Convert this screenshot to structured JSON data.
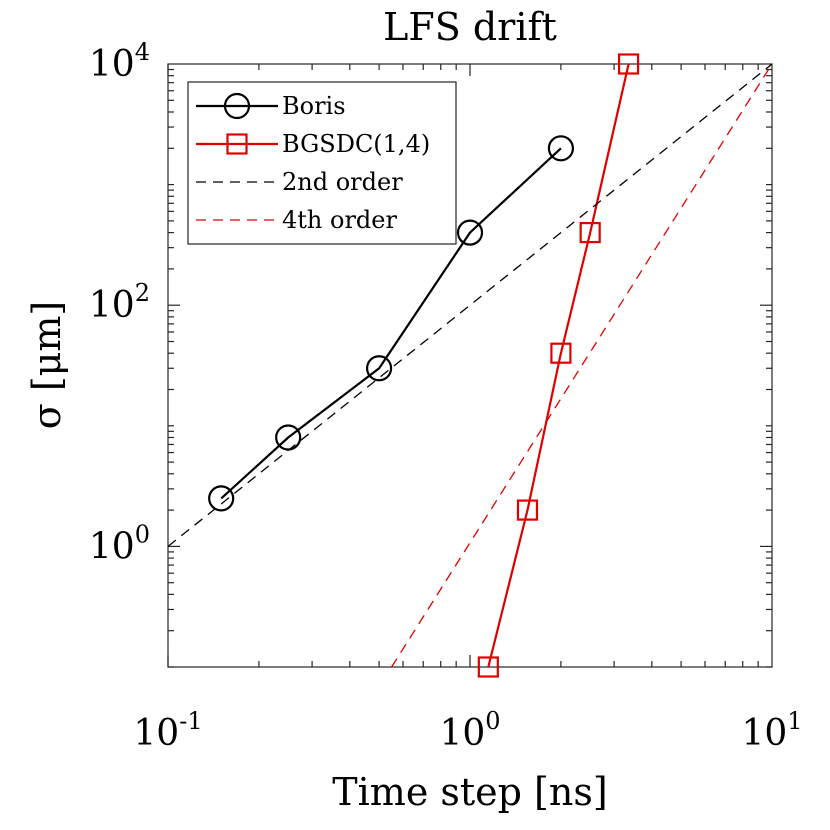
{
  "chart_data": {
    "type": "line",
    "title": "LFS drift",
    "xlabel": "Time step [ns]",
    "ylabel": "σ [μm]",
    "x_scale": "log",
    "y_scale": "log",
    "xlim": [
      0.1,
      10
    ],
    "ylim": [
      0.1,
      10000
    ],
    "x_ticks": [
      {
        "base": "10",
        "exp": "-1",
        "value": 0.1
      },
      {
        "base": "10",
        "exp": "0",
        "value": 1
      },
      {
        "base": "10",
        "exp": "1",
        "value": 10
      }
    ],
    "y_ticks": [
      {
        "base": "10",
        "exp": "0",
        "value": 1
      },
      {
        "base": "10",
        "exp": "2",
        "value": 100
      },
      {
        "base": "10",
        "exp": "4",
        "value": 10000
      }
    ],
    "grid": false,
    "legend_position": "top-left",
    "series": [
      {
        "name": "Boris",
        "color": "#000000",
        "line_style": "solid",
        "marker": "circle",
        "x": [
          0.15,
          0.25,
          0.5,
          1.0,
          2.0
        ],
        "y": [
          2.5,
          8,
          30,
          400,
          2000
        ]
      },
      {
        "name": "BGSDC(1,4)",
        "color": "#e00000",
        "line_style": "solid",
        "marker": "square",
        "x": [
          1.15,
          1.55,
          2.0,
          2.5,
          3.35
        ],
        "y": [
          0.1,
          2.0,
          40,
          400,
          10000
        ]
      },
      {
        "name": "2nd order",
        "color": "#000000",
        "line_style": "dashed",
        "marker": "none",
        "x": [
          0.1,
          10
        ],
        "y": [
          1,
          10000
        ]
      },
      {
        "name": "4th order",
        "color": "#e00000",
        "line_style": "dashed",
        "marker": "none",
        "x": [
          0.55,
          10
        ],
        "y": [
          0.1,
          10000
        ]
      }
    ]
  }
}
